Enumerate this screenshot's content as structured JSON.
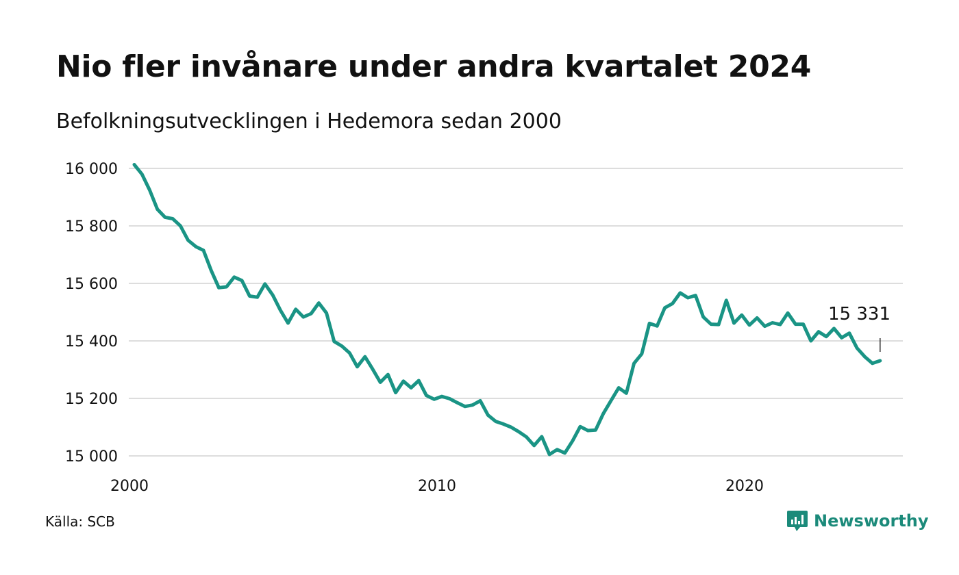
{
  "header": {
    "title": "Nio fler invånare under andra kvartalet 2024",
    "subtitle": "Befolkningsutvecklingen i Hedemora sedan 2000"
  },
  "footer": {
    "source": "Källa: SCB",
    "brand_name": "Newsworthy"
  },
  "colors": {
    "line": "#1a9485",
    "grid": "#dddddd",
    "brand": "#1b8a7a"
  },
  "icons": {
    "brand_logo": "bar-chart-speech-bubble-icon"
  },
  "chart_data": {
    "type": "line",
    "title": "Nio fler invånare under andra kvartalet 2024",
    "subtitle": "Befolkningsutvecklingen i Hedemora sedan 2000",
    "xlabel": "",
    "ylabel": "",
    "x_start_year": 2000,
    "x_step": 0.25,
    "xlim": [
      2000,
      2025
    ],
    "ylim": [
      15000,
      16000
    ],
    "y_ticks": [
      15000,
      15200,
      15400,
      15600,
      15800,
      16000
    ],
    "y_tick_labels": [
      "15 000",
      "15 200",
      "15 400",
      "15 600",
      "15 800",
      "16 000"
    ],
    "x_ticks": [
      2000,
      2010,
      2020
    ],
    "x_tick_labels": [
      "2000",
      "2010",
      "2020"
    ],
    "grid": true,
    "last_value_label": "15 331",
    "series": [
      {
        "values": [
          16013,
          15980,
          15925,
          15858,
          15830,
          15825,
          15800,
          15750,
          15728,
          15715,
          15645,
          15585,
          15588,
          15622,
          15610,
          15556,
          15552,
          15598,
          15560,
          15507,
          15462,
          15510,
          15483,
          15495,
          15532,
          15497,
          15398,
          15382,
          15358,
          15310,
          15345,
          15302,
          15256,
          15283,
          15220,
          15260,
          15237,
          15262,
          15210,
          15197,
          15207,
          15199,
          15185,
          15172,
          15177,
          15192,
          15142,
          15120,
          15111,
          15100,
          15084,
          15066,
          15036,
          15067,
          15005,
          15022,
          15010,
          15052,
          15102,
          15088,
          15090,
          15147,
          15192,
          15237,
          15218,
          15322,
          15355,
          15461,
          15452,
          15515,
          15530,
          15567,
          15550,
          15558,
          15483,
          15458,
          15457,
          15541,
          15462,
          15490,
          15455,
          15480,
          15451,
          15463,
          15457,
          15497,
          15458,
          15458,
          15400,
          15432,
          15415,
          15443,
          15411,
          15427,
          15375,
          15345,
          15322,
          15331
        ]
      }
    ]
  }
}
